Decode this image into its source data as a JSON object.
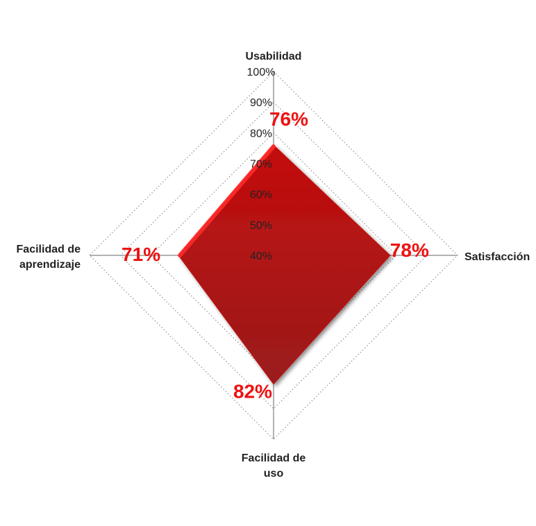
{
  "chart_data": {
    "type": "radar",
    "axes": [
      "Usabilidad",
      "Satisfacción",
      "Facilidad de uso",
      "Facilidad de aprendizaje"
    ],
    "axis_label_lines": [
      [
        "Usabilidad"
      ],
      [
        "Satisfacción"
      ],
      [
        "Facilidad de",
        "uso"
      ],
      [
        "Facilidad de",
        "aprendizaje"
      ]
    ],
    "r_ticks": [
      "40%",
      "50%",
      "60%",
      "70%",
      "80%",
      "90%",
      "100%"
    ],
    "r_range": [
      40,
      100
    ],
    "series": [
      {
        "values": [
          76,
          78,
          82,
          71
        ],
        "labels": [
          "76%",
          "78%",
          "82%",
          "71%"
        ]
      }
    ],
    "gridlines": "dotted",
    "colors": {
      "fill_top": "#c40d0d",
      "fill_bottom": "#9c1a1a",
      "edge": "#ff2a2a",
      "label": "#ee1111",
      "grid": "#999999"
    }
  }
}
